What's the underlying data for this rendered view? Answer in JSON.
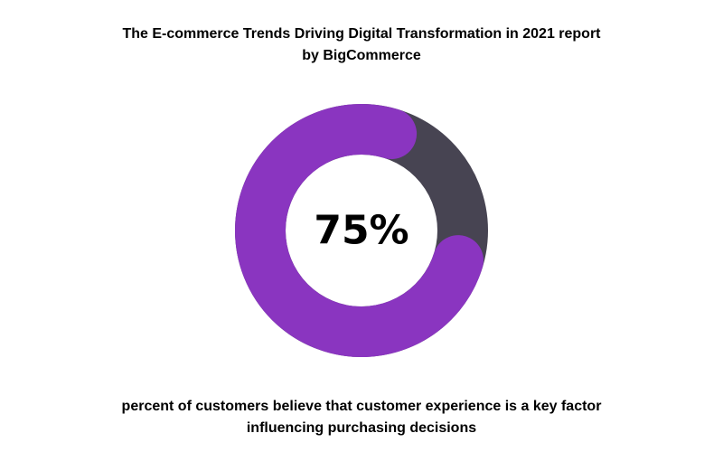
{
  "title": {
    "line1": "The E-commerce Trends Driving Digital Transformation in 2021 report",
    "line2": "by BigCommerce"
  },
  "caption": {
    "line1": "percent of customers believe that customer experience is a key factor",
    "line2": "influencing purchasing decisions"
  },
  "chart_data": {
    "type": "pie",
    "style": "donut",
    "center_label": "75%",
    "values": [
      75,
      25
    ],
    "colors": [
      "#8A35C0",
      "#474452"
    ],
    "rounded_end_caps": true
  }
}
